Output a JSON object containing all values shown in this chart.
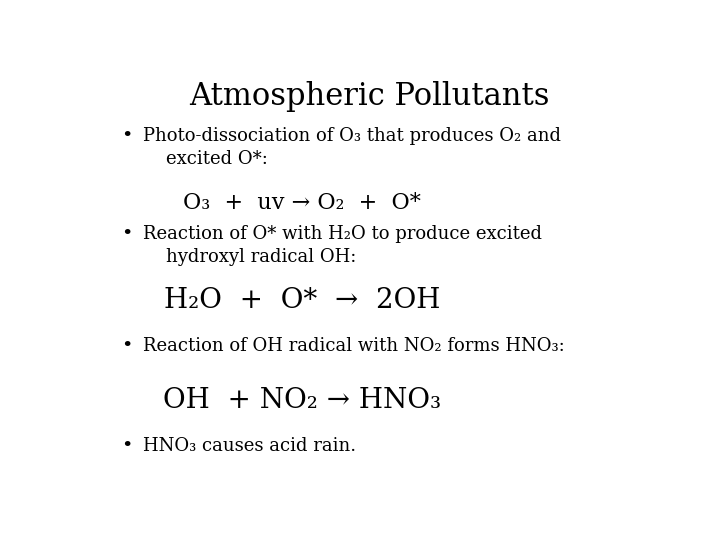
{
  "title": "Atmospheric Pollutants",
  "background_color": "#ffffff",
  "text_color": "#000000",
  "title_fontsize": 22,
  "body_fontsize": 13,
  "bullet_items": [
    {
      "bullet_text": "Photo-dissociation of O₃ that produces O₂ and\n    excited O*:",
      "equation": "O₃  +  uv → O₂  +  O*",
      "eq_fontsize": 16,
      "eq_style": "normal"
    },
    {
      "bullet_text": "Reaction of O* with H₂O to produce excited\n    hydroxyl radical OH:",
      "equation": "H₂O  +  O*  →  2OH",
      "eq_fontsize": 20,
      "eq_style": "normal"
    },
    {
      "bullet_text": "Reaction of OH radical with NO₂ forms HNO₃:",
      "equation": "OH  + NO₂ → HNO₃",
      "eq_fontsize": 20,
      "eq_style": "normal"
    },
    {
      "bullet_text": "HNO₃ causes acid rain.",
      "equation": null,
      "eq_fontsize": null,
      "eq_style": null
    }
  ]
}
